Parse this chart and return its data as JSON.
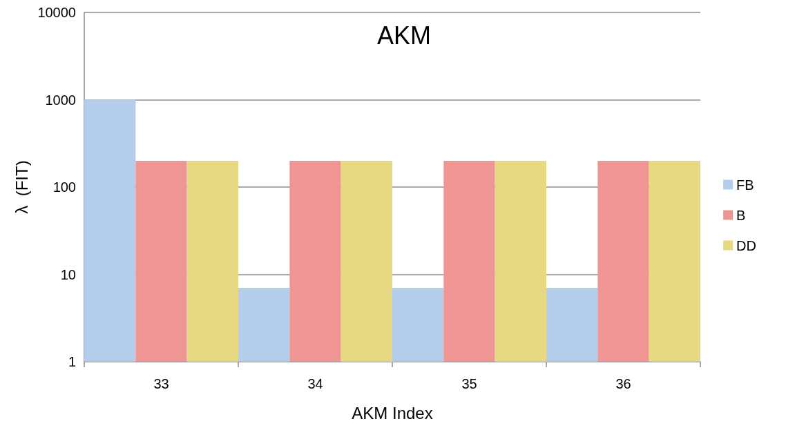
{
  "chart_data": {
    "type": "bar",
    "title": "AKM",
    "xlabel": "AKM Index",
    "ylabel": "λ  (FIT)",
    "categories": [
      "33",
      "34",
      "35",
      "36"
    ],
    "series": [
      {
        "name": "FB",
        "color": "#b3cdea",
        "values": [
          1000,
          7,
          7,
          7
        ]
      },
      {
        "name": "B",
        "color": "#ef9594",
        "values": [
          200,
          200,
          200,
          200
        ]
      },
      {
        "name": "DD",
        "color": "#e6d982",
        "values": [
          200,
          200,
          200,
          200
        ]
      }
    ],
    "log": "y",
    "ylim": [
      1,
      10000
    ],
    "yticks": [
      1,
      10,
      100,
      1000,
      10000
    ],
    "grid": "y",
    "legend": "right"
  }
}
